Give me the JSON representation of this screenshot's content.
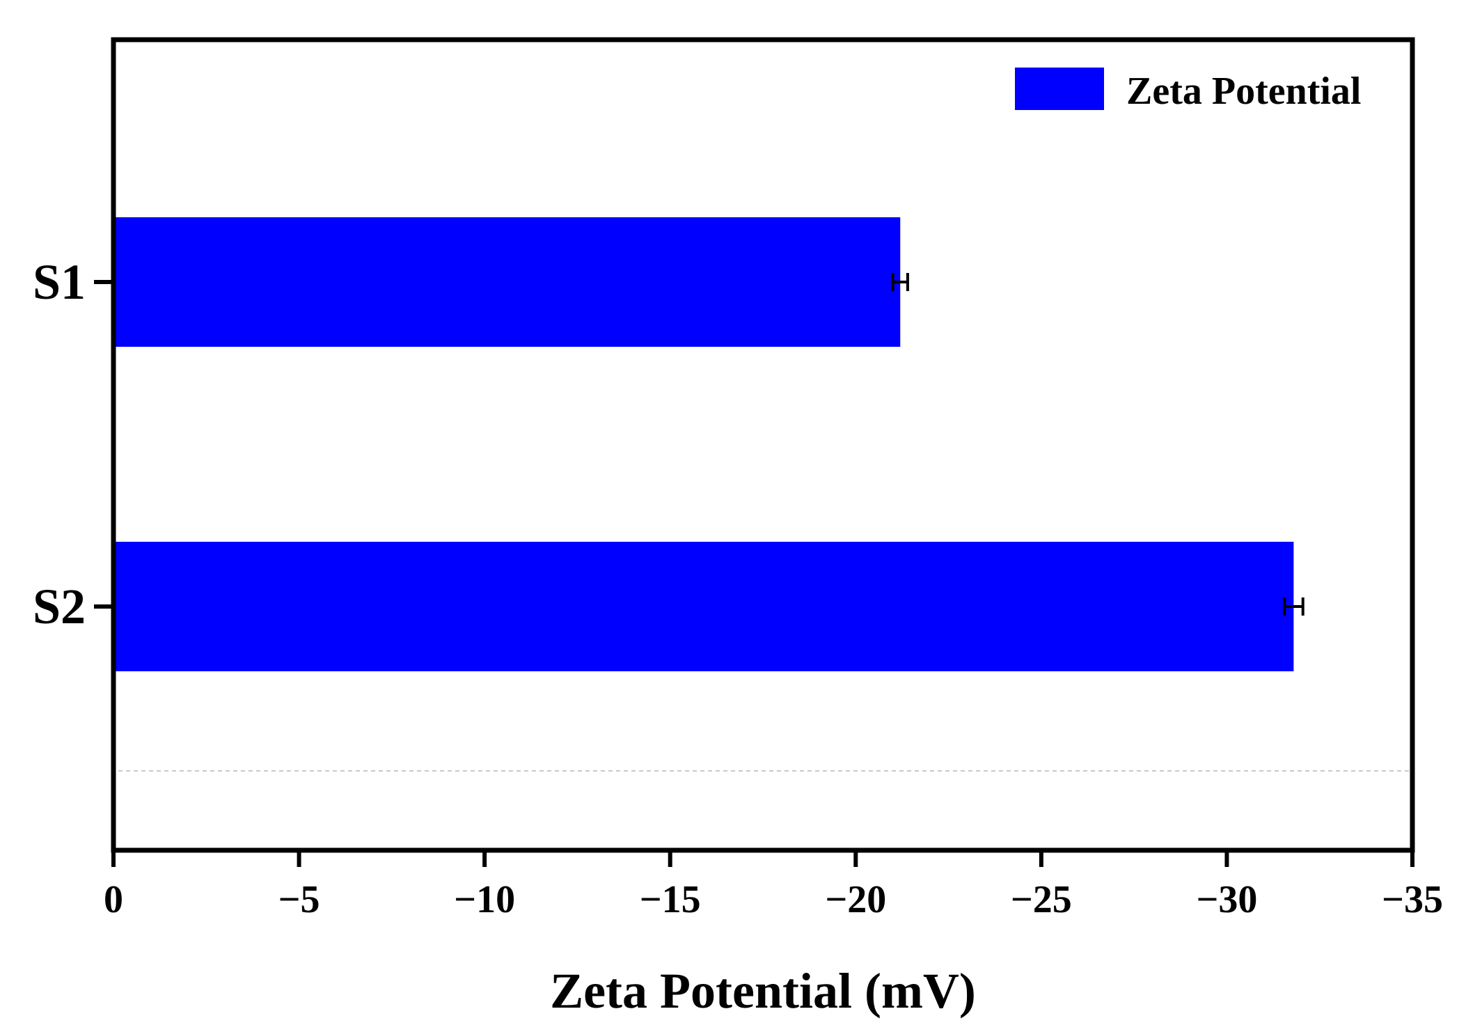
{
  "chart_data": {
    "type": "bar",
    "orientation": "horizontal",
    "categories": [
      "S1",
      "S2"
    ],
    "series": [
      {
        "name": "Zeta Potential",
        "values": [
          -21.2,
          -31.8
        ],
        "errors": [
          0.2,
          0.25
        ],
        "color": "#0000ff"
      }
    ],
    "xlabel": "Zeta Potential (mV)",
    "ylabel": "",
    "title": "",
    "xlim": [
      0,
      -35
    ],
    "x_ticks": [
      0,
      -5,
      -10,
      -15,
      -20,
      -25,
      -30,
      -35
    ],
    "x_tick_labels": [
      "0",
      "−5",
      "−10",
      "−15",
      "−20",
      "−25",
      "−30",
      "−35"
    ],
    "legend": {
      "position": "top-right",
      "entries": [
        "Zeta Potential"
      ]
    },
    "grid": false,
    "colors": {
      "bar": "#0000ff",
      "axis": "#000000",
      "error_bar": "#000000",
      "background": "#ffffff"
    }
  }
}
